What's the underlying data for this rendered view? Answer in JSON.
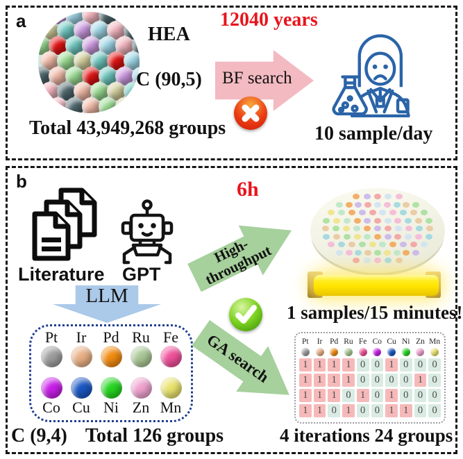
{
  "panel_a": {
    "label": "a",
    "hea": "HEA",
    "combination": "C (90,5)",
    "total": "Total 43,949,268 groups",
    "time": "12040 years",
    "bf_arrow": "BF search",
    "throughput": "10 sample/day"
  },
  "panel_b": {
    "label": "b",
    "literature": "Literature",
    "gpt": "GPT",
    "llm": "LLM",
    "time": "6h",
    "ht_line1": "High-",
    "ht_line2": "throughput",
    "ga": "GA search",
    "wafer_caption": "1 samples/15 minutes!",
    "combination": "C (9,4)",
    "total": "Total 126 groups",
    "iterations": "4 iterations 24 groups",
    "elements": [
      {
        "symbol": "Pt",
        "color": "#9e9e9e"
      },
      {
        "symbol": "Ir",
        "color": "#e9b085"
      },
      {
        "symbol": "Pd",
        "color": "#f28c12"
      },
      {
        "symbol": "Ru",
        "color": "#a9c795"
      },
      {
        "symbol": "Fe",
        "color": "#f0519b"
      },
      {
        "symbol": "Co",
        "color": "#c81fe8"
      },
      {
        "symbol": "Cu",
        "color": "#1a57c2"
      },
      {
        "symbol": "Ni",
        "color": "#25d620"
      },
      {
        "symbol": "Zn",
        "color": "#efa2ce"
      },
      {
        "symbol": "Mn",
        "color": "#e9e36e"
      }
    ],
    "table_rows": [
      [
        1,
        1,
        1,
        1,
        0,
        0,
        1,
        0,
        0,
        0
      ],
      [
        1,
        1,
        1,
        1,
        0,
        0,
        0,
        0,
        1,
        0
      ],
      [
        1,
        1,
        1,
        0,
        1,
        0,
        1,
        0,
        0,
        0
      ],
      [
        1,
        1,
        0,
        1,
        0,
        0,
        1,
        1,
        0,
        0
      ]
    ]
  },
  "colors": {
    "red_text": "#e8141c",
    "bf_arrow": "#f3bac1",
    "llm_arrow": "#abc9e9",
    "green_arrow": "#a6d09c",
    "cell_one": "#f6b9b9",
    "cell_zero": "#d9ebe2",
    "scientist_blue": "#2b64a8",
    "cluster_red": "#e51414"
  },
  "cluster_palette": [
    "#6fc8c0",
    "#f2b3bd",
    "#9adb92",
    "#cc99e0",
    "#50696f",
    "#d2ce9c",
    "#9ed6e6",
    "#f0b9a6"
  ],
  "wafer_palette": [
    "#f2a85c",
    "#a8dfa0",
    "#f4b8d8",
    "#c9b6ec",
    "#efe48a",
    "#9fd8e0",
    "#f2a3a3",
    "#bce6c9",
    "#e8c9a0",
    "#cfe3f2"
  ]
}
